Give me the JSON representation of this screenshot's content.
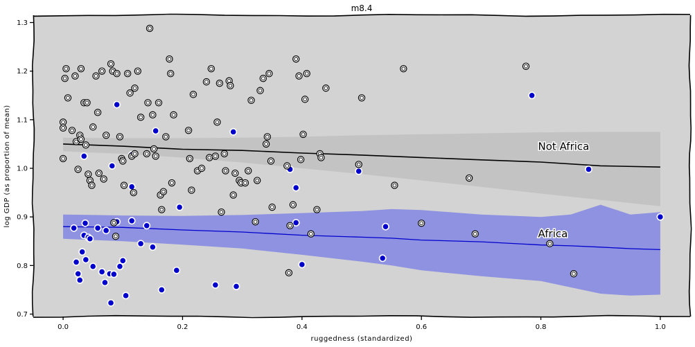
{
  "chart_data": {
    "type": "scatter",
    "title": "m8.4",
    "xlabel": "ruggedness (standardized)",
    "ylabel": "log GDP (as proportion of mean)",
    "xlim": [
      -0.05,
      1.05
    ],
    "ylim": [
      0.695,
      1.315
    ],
    "x_ticks": [
      0.0,
      0.2,
      0.4,
      0.6,
      0.8,
      1.0
    ],
    "x_tick_labels": [
      "0.0",
      "0.2",
      "0.4",
      "0.6",
      "0.8",
      "1.0"
    ],
    "y_ticks": [
      0.7,
      0.8,
      0.9,
      1.0,
      1.1,
      1.2,
      1.3
    ],
    "y_tick_labels": [
      "0.7",
      "0.8",
      "0.9",
      "1.0",
      "1.1",
      "1.2",
      "1.3"
    ],
    "grid": false,
    "colors": {
      "background": "#d3d3d3",
      "africa_point": "#0000cd",
      "not_africa_point": "#ffffff",
      "point_edge": "#ffffff",
      "africa_band": "#8f92e0",
      "africa_line": "#0000cd",
      "not_africa_band": "#c3c3c3",
      "not_africa_line": "#000000"
    },
    "annotations": [
      {
        "text": "Not Africa",
        "x": 0.8,
        "y": 1.045
      },
      {
        "text": "Africa",
        "x": 0.8,
        "y": 0.865
      }
    ],
    "fits": [
      {
        "group": "Not Africa",
        "x": [
          0.0,
          0.1,
          0.2,
          0.3,
          0.4,
          0.5,
          0.6,
          0.7,
          0.8,
          0.9,
          1.0
        ],
        "mean": [
          1.05,
          1.045,
          1.04,
          1.036,
          1.032,
          1.027,
          1.022,
          1.018,
          1.012,
          1.006,
          1.002
        ],
        "lower": [
          1.035,
          1.03,
          1.022,
          1.012,
          1.0,
          0.988,
          0.975,
          0.962,
          0.948,
          0.935,
          0.922
        ],
        "upper": [
          1.063,
          1.062,
          1.062,
          1.063,
          1.065,
          1.068,
          1.07,
          1.072,
          1.074,
          1.075,
          1.075
        ]
      },
      {
        "group": "Africa",
        "x": [
          0.0,
          0.1,
          0.2,
          0.3,
          0.4,
          0.5,
          0.55,
          0.6,
          0.7,
          0.8,
          0.85,
          0.9,
          0.95,
          1.0
        ],
        "mean": [
          0.88,
          0.878,
          0.874,
          0.868,
          0.863,
          0.858,
          0.856,
          0.853,
          0.848,
          0.843,
          0.84,
          0.838,
          0.835,
          0.832
        ],
        "lower": [
          0.855,
          0.85,
          0.843,
          0.835,
          0.822,
          0.808,
          0.8,
          0.79,
          0.778,
          0.768,
          0.755,
          0.742,
          0.738,
          0.74
        ],
        "upper": [
          0.905,
          0.903,
          0.902,
          0.904,
          0.908,
          0.912,
          0.916,
          0.914,
          0.905,
          0.9,
          0.905,
          0.925,
          0.905,
          0.91
        ]
      }
    ],
    "series": [
      {
        "name": "Africa",
        "points": [
          [
            0.018,
            0.877
          ],
          [
            0.022,
            0.807
          ],
          [
            0.025,
            0.783
          ],
          [
            0.028,
            0.77
          ],
          [
            0.032,
            0.828
          ],
          [
            0.035,
            0.862
          ],
          [
            0.037,
            0.887
          ],
          [
            0.038,
            0.812
          ],
          [
            0.042,
            0.858
          ],
          [
            0.045,
            0.855
          ],
          [
            0.05,
            0.798
          ],
          [
            0.058,
            0.877
          ],
          [
            0.065,
            0.787
          ],
          [
            0.07,
            0.765
          ],
          [
            0.072,
            0.872
          ],
          [
            0.078,
            0.783
          ],
          [
            0.08,
            0.723
          ],
          [
            0.085,
            0.782
          ],
          [
            0.09,
            0.89
          ],
          [
            0.095,
            0.798
          ],
          [
            0.1,
            0.81
          ],
          [
            0.105,
            0.738
          ],
          [
            0.115,
            0.892
          ],
          [
            0.13,
            0.845
          ],
          [
            0.14,
            0.882
          ],
          [
            0.15,
            0.838
          ],
          [
            0.165,
            0.75
          ],
          [
            0.19,
            0.79
          ],
          [
            0.195,
            0.92
          ],
          [
            0.255,
            0.76
          ],
          [
            0.29,
            0.757
          ],
          [
            0.39,
            0.888
          ],
          [
            0.4,
            0.802
          ],
          [
            0.535,
            0.815
          ],
          [
            0.54,
            0.88
          ],
          [
            0.88,
            0.998
          ],
          [
            0.035,
            1.025
          ],
          [
            0.115,
            0.962
          ],
          [
            0.115,
            1.028
          ],
          [
            0.09,
            1.131
          ],
          [
            0.155,
            1.077
          ],
          [
            0.285,
            1.075
          ],
          [
            0.38,
            0.998
          ],
          [
            0.39,
            0.96
          ],
          [
            0.495,
            0.994
          ],
          [
            0.785,
            1.15
          ],
          [
            1.0,
            0.9
          ],
          [
            0.082,
            1.005
          ]
        ]
      },
      {
        "name": "Not Africa",
        "points": [
          [
            0.0,
            1.02
          ],
          [
            0.0,
            1.095
          ],
          [
            0.0,
            1.083
          ],
          [
            0.003,
            1.185
          ],
          [
            0.005,
            1.205
          ],
          [
            0.008,
            1.145
          ],
          [
            0.015,
            1.078
          ],
          [
            0.02,
            1.19
          ],
          [
            0.022,
            1.055
          ],
          [
            0.025,
            0.998
          ],
          [
            0.028,
            1.068
          ],
          [
            0.03,
            1.205
          ],
          [
            0.03,
            1.06
          ],
          [
            0.035,
            1.135
          ],
          [
            0.038,
            1.048
          ],
          [
            0.04,
            1.135
          ],
          [
            0.042,
            0.988
          ],
          [
            0.045,
            0.975
          ],
          [
            0.048,
            0.965
          ],
          [
            0.05,
            1.085
          ],
          [
            0.055,
            1.19
          ],
          [
            0.058,
            1.115
          ],
          [
            0.06,
            0.99
          ],
          [
            0.065,
            1.2
          ],
          [
            0.068,
            0.978
          ],
          [
            0.072,
            1.068
          ],
          [
            0.08,
            1.215
          ],
          [
            0.083,
            1.2
          ],
          [
            0.085,
            0.888
          ],
          [
            0.088,
            0.86
          ],
          [
            0.09,
            1.195
          ],
          [
            0.095,
            1.065
          ],
          [
            0.098,
            1.02
          ],
          [
            0.1,
            1.015
          ],
          [
            0.102,
            0.965
          ],
          [
            0.108,
            1.195
          ],
          [
            0.112,
            1.155
          ],
          [
            0.115,
            1.025
          ],
          [
            0.118,
            0.95
          ],
          [
            0.12,
            1.165
          ],
          [
            0.12,
            1.03
          ],
          [
            0.125,
            1.2
          ],
          [
            0.13,
            1.105
          ],
          [
            0.14,
            1.03
          ],
          [
            0.142,
            1.135
          ],
          [
            0.145,
            1.288
          ],
          [
            0.15,
            1.11
          ],
          [
            0.152,
            1.04
          ],
          [
            0.155,
            1.025
          ],
          [
            0.16,
            1.135
          ],
          [
            0.163,
            0.945
          ],
          [
            0.165,
            0.915
          ],
          [
            0.168,
            0.952
          ],
          [
            0.172,
            1.065
          ],
          [
            0.178,
            1.225
          ],
          [
            0.18,
            1.195
          ],
          [
            0.182,
            0.97
          ],
          [
            0.185,
            1.11
          ],
          [
            0.21,
            1.078
          ],
          [
            0.212,
            1.02
          ],
          [
            0.215,
            0.955
          ],
          [
            0.218,
            1.152
          ],
          [
            0.225,
            0.995
          ],
          [
            0.232,
            1.0
          ],
          [
            0.24,
            1.178
          ],
          [
            0.245,
            1.022
          ],
          [
            0.248,
            1.205
          ],
          [
            0.255,
            1.025
          ],
          [
            0.258,
            1.095
          ],
          [
            0.262,
            1.175
          ],
          [
            0.265,
            0.91
          ],
          [
            0.27,
            1.03
          ],
          [
            0.272,
            0.995
          ],
          [
            0.278,
            1.18
          ],
          [
            0.28,
            1.17
          ],
          [
            0.285,
            0.945
          ],
          [
            0.288,
            0.99
          ],
          [
            0.295,
            0.975
          ],
          [
            0.298,
            0.97
          ],
          [
            0.305,
            0.97
          ],
          [
            0.31,
            0.995
          ],
          [
            0.315,
            1.14
          ],
          [
            0.322,
            0.89
          ],
          [
            0.325,
            0.975
          ],
          [
            0.33,
            1.16
          ],
          [
            0.335,
            1.185
          ],
          [
            0.34,
            1.05
          ],
          [
            0.342,
            1.065
          ],
          [
            0.345,
            1.195
          ],
          [
            0.348,
            1.015
          ],
          [
            0.35,
            0.92
          ],
          [
            0.375,
            1.005
          ],
          [
            0.378,
            0.785
          ],
          [
            0.38,
            0.882
          ],
          [
            0.385,
            0.925
          ],
          [
            0.39,
            1.225
          ],
          [
            0.395,
            1.19
          ],
          [
            0.398,
            1.018
          ],
          [
            0.402,
            1.07
          ],
          [
            0.405,
            1.142
          ],
          [
            0.408,
            1.195
          ],
          [
            0.415,
            0.865
          ],
          [
            0.425,
            0.915
          ],
          [
            0.43,
            1.03
          ],
          [
            0.432,
            1.022
          ],
          [
            0.44,
            1.165
          ],
          [
            0.495,
            1.008
          ],
          [
            0.5,
            1.145
          ],
          [
            0.555,
            0.965
          ],
          [
            0.57,
            1.205
          ],
          [
            0.6,
            0.887
          ],
          [
            0.68,
            0.98
          ],
          [
            0.69,
            0.865
          ],
          [
            0.775,
            1.21
          ],
          [
            0.815,
            0.845
          ],
          [
            0.855,
            0.783
          ]
        ]
      }
    ]
  }
}
